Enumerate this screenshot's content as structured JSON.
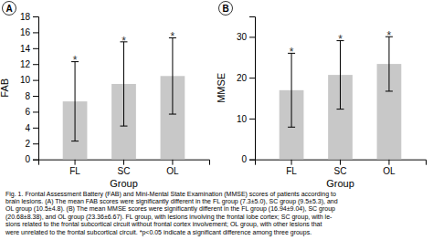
{
  "chart_data": [
    {
      "type": "bar",
      "title": "A",
      "xlabel": "Group",
      "ylabel": "FAB",
      "categories": [
        "FL",
        "SC",
        "OL"
      ],
      "values": [
        7.3,
        9.5,
        10.5
      ],
      "errors": [
        5.0,
        5.3,
        4.8
      ],
      "annotation": "*",
      "color": "#c8c8c8",
      "ylim": [
        0,
        18
      ],
      "yticks": [
        0,
        2,
        4,
        6,
        8,
        10,
        12,
        14,
        16,
        18
      ]
    },
    {
      "type": "bar",
      "title": "B",
      "xlabel": "Group",
      "ylabel": "MMSE",
      "categories": [
        "FL",
        "SC",
        "OL"
      ],
      "values": [
        16.94,
        20.68,
        23.36
      ],
      "errors": [
        9.04,
        8.38,
        6.67
      ],
      "annotation": "*",
      "color": "#c8c8c8",
      "ylim": [
        0,
        35
      ],
      "yticks": [
        0,
        10,
        20,
        30
      ]
    }
  ],
  "caption": "Fig. 1. Frontal Assessment Battery (FAB) and Mini-Mental State Examination (MMSE) scores of patients according to\nbrain lesions. (A) The mean FAB scores were significantly different in the FL group (7.3±5.0), SC group (9.5±5.3), and\nOL group (10.5±4.8). (B) The mean MMSE scores were significantly different in the FL group (16.94±9.04), SC group\n(20.68±8.38), and OL group (23.36±6.67). FL group, with lesions involving the frontal lobe cortex; SC group, with le-\nsions related to the frontal subcortical circuit without frontal cortex involvement; OL group, with other lesions that\nwere unrelated to the frontal subcortical circuit. *p<0.05 indicate a significant difference among three groups."
}
